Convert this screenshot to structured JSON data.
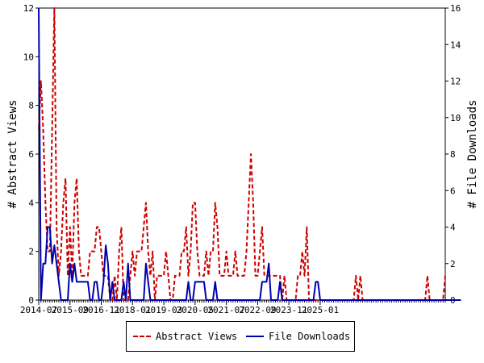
{
  "chart_data": {
    "type": "line",
    "title": "",
    "xlabel": "",
    "ylabel": "# Abstract Views",
    "y2label": "# File Downloads",
    "ylim": [
      0,
      12
    ],
    "y2lim": [
      0,
      16
    ],
    "yticks": [
      "0",
      "2",
      "4",
      "6",
      "8",
      "10",
      "12"
    ],
    "y2ticks": [
      "0",
      "2",
      "4",
      "6",
      "8",
      "10",
      "12",
      "14",
      "16"
    ],
    "xticks": [
      "2014-07",
      "2015-09",
      "2016-11",
      "2018-01",
      "2019-03",
      "2020-05",
      "2021-07",
      "2022-09",
      "2023-11",
      "2025-01"
    ],
    "grid": false,
    "legend_position": "bottom",
    "series": [
      {
        "name": "Abstract Views",
        "axis": "left",
        "color": "#cc0000",
        "style": "dashed",
        "values": [
          7,
          9,
          7,
          4,
          2,
          2,
          7,
          12,
          3,
          1,
          2,
          4,
          5,
          1,
          3,
          1,
          4,
          5,
          2,
          1,
          1,
          1,
          1,
          2,
          2,
          2,
          3,
          3,
          2,
          1,
          1,
          1,
          0,
          0,
          1,
          0,
          2,
          3,
          0,
          0,
          0,
          1,
          2,
          1,
          2,
          2,
          2,
          3,
          4,
          2,
          1,
          2,
          0,
          1,
          1,
          1,
          1,
          2,
          1,
          0,
          0,
          1,
          1,
          1,
          2,
          2,
          3,
          1,
          2,
          4,
          4,
          2,
          1,
          1,
          1,
          2,
          1,
          2,
          2,
          4,
          3,
          1,
          1,
          1,
          2,
          1,
          1,
          1,
          2,
          1,
          1,
          1,
          1,
          2,
          4,
          6,
          4,
          1,
          1,
          2,
          3,
          1,
          1,
          1,
          1,
          1,
          1,
          1,
          1,
          0,
          1,
          0,
          0,
          0,
          0,
          0,
          1,
          1,
          2,
          1,
          3,
          0,
          0,
          0,
          0,
          0,
          0,
          0,
          0,
          0,
          0,
          0,
          0,
          0,
          0,
          0,
          0,
          0,
          0,
          0,
          0,
          0,
          1,
          0,
          1,
          0,
          0,
          0,
          0,
          0,
          0,
          0,
          0,
          0,
          0,
          0,
          0,
          0,
          0,
          0,
          0,
          0,
          0,
          0,
          0,
          0,
          0,
          0,
          0,
          0,
          0,
          0,
          0,
          0,
          1,
          0,
          0,
          0,
          0,
          0,
          0,
          0,
          1
        ]
      },
      {
        "name": "File Downloads",
        "axis": "right",
        "color": "#0000aa",
        "style": "solid",
        "values": [
          16,
          0,
          2,
          2,
          4,
          4,
          2,
          3,
          2,
          1,
          0,
          0,
          0,
          0,
          2,
          1,
          2,
          1,
          1,
          1,
          1,
          1,
          1,
          0,
          0,
          1,
          1,
          0,
          0,
          1,
          3,
          2,
          0,
          1,
          0,
          0,
          0,
          0,
          1,
          0,
          2,
          0,
          0,
          0,
          0,
          0,
          0,
          0,
          2,
          1,
          0,
          0,
          0,
          0,
          0,
          0,
          0,
          0,
          0,
          0,
          0,
          0,
          0,
          0,
          0,
          0,
          0,
          1,
          0,
          0,
          1,
          1,
          1,
          1,
          1,
          0,
          0,
          0,
          0,
          1,
          0,
          0,
          0,
          0,
          0,
          0,
          0,
          0,
          0,
          0,
          0,
          0,
          0,
          0,
          0,
          0,
          0,
          0,
          0,
          0,
          1,
          1,
          1,
          2,
          0,
          0,
          0,
          0,
          1,
          0,
          0,
          0,
          0,
          0,
          0,
          0,
          0,
          0,
          0,
          0,
          0,
          0,
          0,
          0,
          1,
          1,
          0,
          0,
          0,
          0,
          0,
          0,
          0,
          0,
          0,
          0,
          0,
          0,
          0,
          0,
          0,
          0,
          0,
          0,
          0,
          0,
          0,
          0,
          0,
          0,
          0,
          0,
          0,
          0,
          0,
          0,
          0,
          0,
          0,
          0,
          0,
          0,
          0,
          0,
          0,
          0,
          0,
          0,
          0,
          0,
          0,
          0,
          0,
          0,
          0,
          0,
          0,
          0,
          0,
          0,
          0,
          0,
          0,
          0,
          0,
          0,
          0,
          0,
          0,
          0
        ]
      }
    ]
  },
  "legend": {
    "abstract_views": "Abstract Views",
    "file_downloads": "File Downloads"
  }
}
